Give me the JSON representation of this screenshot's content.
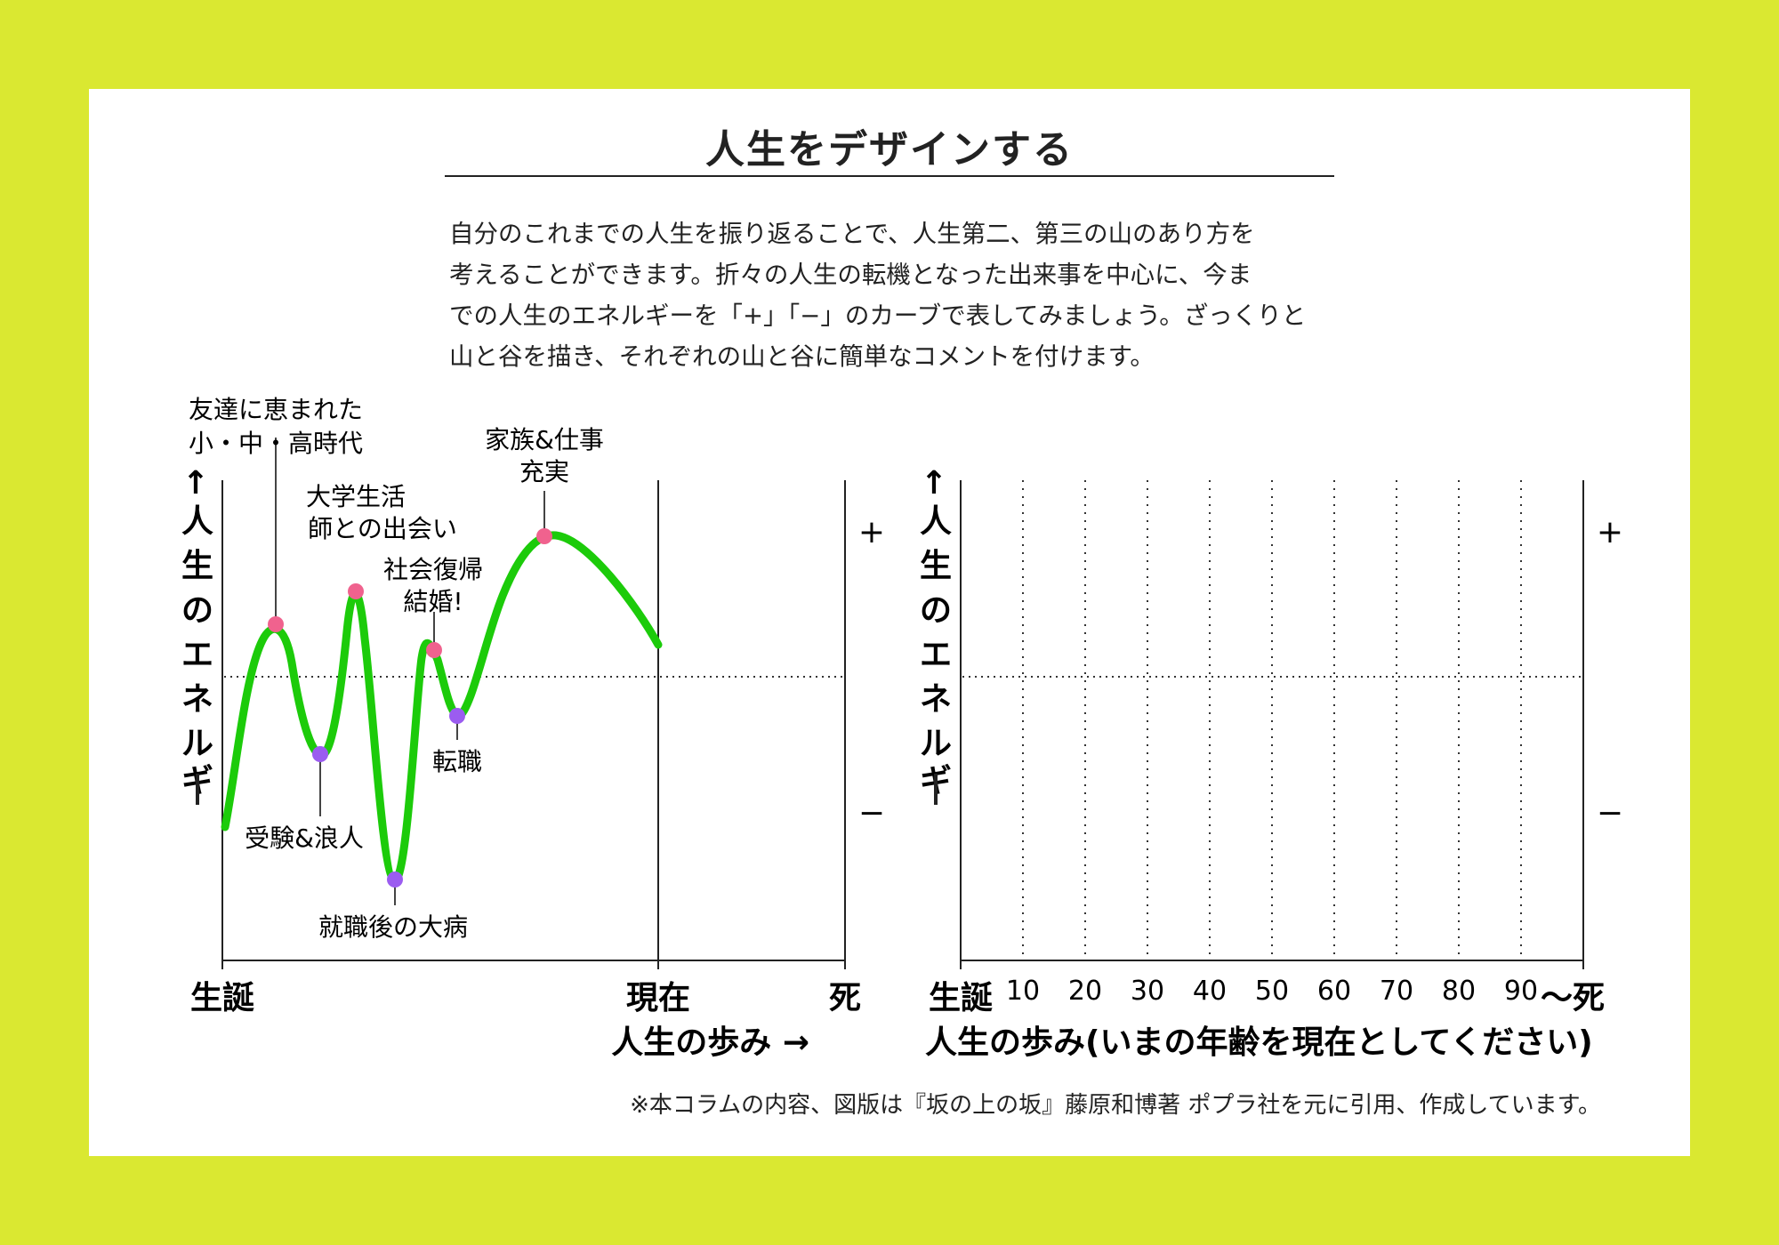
{
  "title": "人生をデザインする",
  "description": [
    "自分のこれまでの人生を振り返ることで、人生第二、第三の山のあり方を",
    "考えることができます。折々の人生の転機となった出来事を中心に、今ま",
    "での人生のエネルギーを「+」「−」のカーブで表してみましょう。ざっくりと",
    "山と谷を描き、それぞれの山と谷に簡単なコメントを付けます。"
  ],
  "colors": {
    "background": "#dae831",
    "curve": "#1ccb0a",
    "peak_marker": "#f0628e",
    "valley_marker": "#9b5cf0"
  },
  "left_chart": {
    "y_axis_label": "↑人生のエネルギー",
    "plus_label": "+",
    "minus_label": "−",
    "x_start_label": "生誕",
    "x_present_label": "現在",
    "x_end_label": "死",
    "x_axis_title": "人生の歩み →",
    "events": [
      {
        "type": "peak",
        "lines": [
          "友達に恵まれた",
          "小・中・高時代"
        ]
      },
      {
        "type": "valley",
        "lines": [
          "受験&浪人"
        ]
      },
      {
        "type": "peak",
        "lines": [
          "大学生活",
          "師との出会い"
        ]
      },
      {
        "type": "valley",
        "lines": [
          "就職後の大病"
        ]
      },
      {
        "type": "peak",
        "lines": [
          "社会復帰",
          "結婚!"
        ]
      },
      {
        "type": "valley",
        "lines": [
          "転職"
        ]
      },
      {
        "type": "peak",
        "lines": [
          "家族&仕事",
          "充実"
        ]
      }
    ]
  },
  "right_chart": {
    "y_axis_label": "↑人生のエネルギー",
    "plus_label": "+",
    "minus_label": "−",
    "x_start_label": "生誕",
    "x_end_label": "〜死",
    "ages": [
      "10",
      "20",
      "30",
      "40",
      "50",
      "60",
      "70",
      "80",
      "90"
    ],
    "x_axis_title": "人生の歩み(いまの年齢を現在としてください)"
  },
  "footnote": "※本コラムの内容、図版は『坂の上の坂』藤原和博著 ポプラ社を元に引用、作成しています。"
}
